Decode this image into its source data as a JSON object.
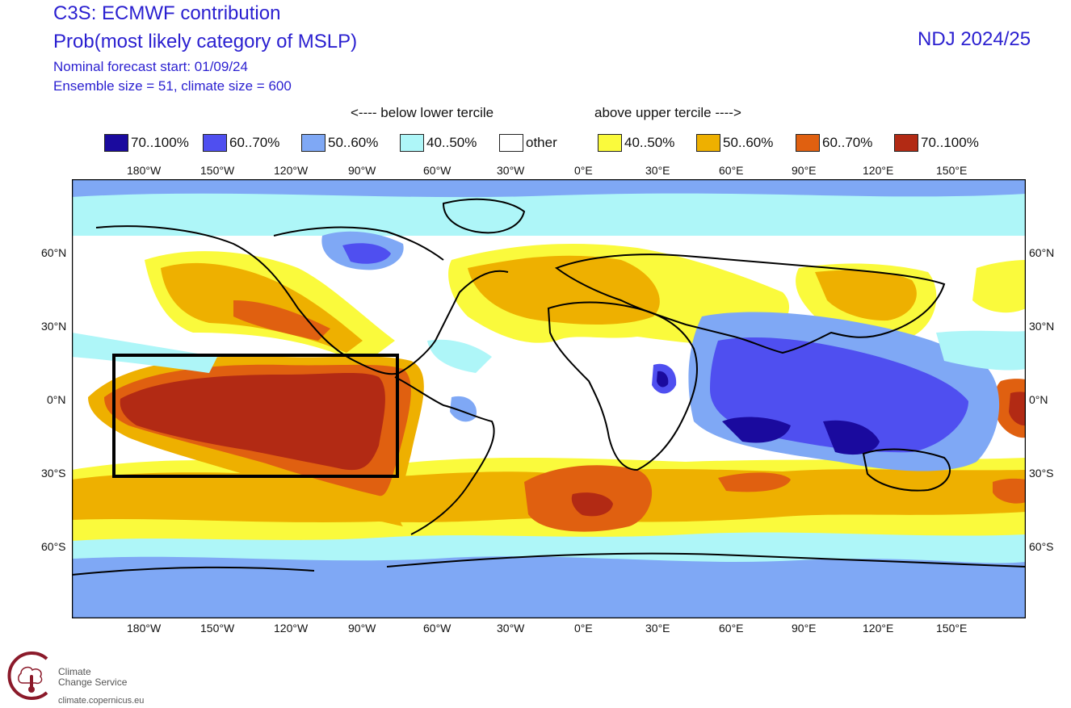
{
  "header": {
    "title": "C3S: ECMWF contribution",
    "subtitle": "Prob(most likely category of MSLP)",
    "forecast_start": "Nominal forecast start: 01/09/24",
    "ensemble": "Ensemble size = 51, climate size = 600",
    "season": "NDJ 2024/25"
  },
  "legend": {
    "below_label": "<---- below lower tercile",
    "above_label": "above upper tercile ---->",
    "items": [
      {
        "label": "70..100%",
        "color": "#1a0a9e"
      },
      {
        "label": "60..70%",
        "color": "#4f4ff0"
      },
      {
        "label": "50..60%",
        "color": "#7fa8f5"
      },
      {
        "label": "40..50%",
        "color": "#aef6f8"
      },
      {
        "label": "other",
        "color": "#ffffff"
      },
      {
        "label": "40..50%",
        "color": "#fafa3c"
      },
      {
        "label": "50..60%",
        "color": "#eeb000"
      },
      {
        "label": "60..70%",
        "color": "#e06010"
      },
      {
        "label": "70..100%",
        "color": "#b22a14"
      }
    ]
  },
  "axes": {
    "lon_labels": [
      "180°W",
      "150°W",
      "120°W",
      "90°W",
      "60°W",
      "30°W",
      "0°E",
      "30°E",
      "60°E",
      "90°E",
      "120°E",
      "150°E"
    ],
    "lat_labels": [
      "60°N",
      "30°N",
      "0°N",
      "30°S",
      "60°S"
    ]
  },
  "logo": {
    "line1": "Climate",
    "line2": "Change Service",
    "url": "climate.copernicus.eu"
  }
}
